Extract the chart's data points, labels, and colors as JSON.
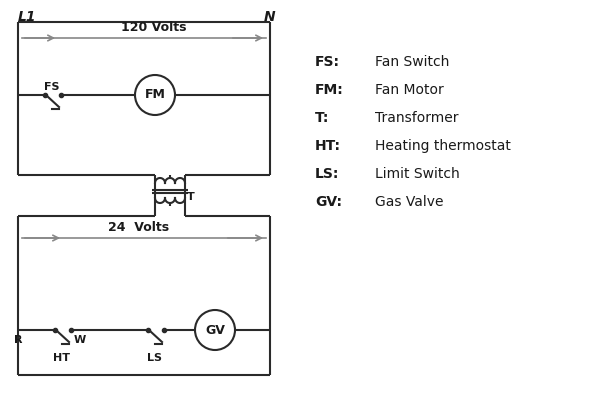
{
  "bg_color": "#ffffff",
  "line_color": "#2a2a2a",
  "arrow_color": "#888888",
  "text_color": "#1a1a1a",
  "legend_items": [
    [
      "FS:",
      "Fan Switch"
    ],
    [
      "FM:",
      "Fan Motor"
    ],
    [
      "T:",
      "Transformer"
    ],
    [
      "HT:",
      "Heating thermostat"
    ],
    [
      "LS:",
      "Limit Switch"
    ],
    [
      "GV:",
      "Gas Valve"
    ]
  ],
  "label_L1": "L1",
  "label_N": "N",
  "label_120V": "120 Volts",
  "label_24V": "24  Volts",
  "label_T": "T"
}
